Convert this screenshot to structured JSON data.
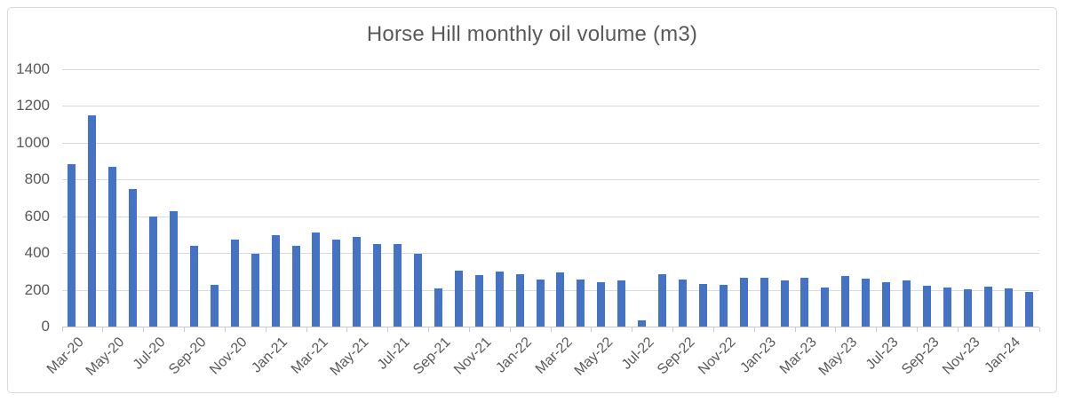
{
  "title": "Horse Hill monthly oil volume (m3)",
  "colors": {
    "bar": "#4472C4",
    "gridline": "#D9D9D9",
    "axis": "#C9C9C9",
    "text": "#595959",
    "border": "#D9D9D9",
    "background": "#FFFFFF"
  },
  "chart_data": {
    "type": "bar",
    "title": "Horse Hill monthly oil volume (m3)",
    "xlabel": "",
    "ylabel": "",
    "ylim": [
      0,
      1400
    ],
    "yticks": [
      0,
      200,
      400,
      600,
      800,
      1000,
      1200,
      1400
    ],
    "grid": true,
    "legend": false,
    "x_label_every": 2,
    "x_label_rotation_deg": -45,
    "categories": [
      "Mar-20",
      "Apr-20",
      "May-20",
      "Jun-20",
      "Jul-20",
      "Aug-20",
      "Sep-20",
      "Oct-20",
      "Nov-20",
      "Dec-20",
      "Jan-21",
      "Feb-21",
      "Mar-21",
      "Apr-21",
      "May-21",
      "Jun-21",
      "Jul-21",
      "Aug-21",
      "Sep-21",
      "Oct-21",
      "Nov-21",
      "Dec-21",
      "Jan-22",
      "Feb-22",
      "Mar-22",
      "Apr-22",
      "May-22",
      "Jun-22",
      "Jul-22",
      "Aug-22",
      "Sep-22",
      "Oct-22",
      "Nov-22",
      "Dec-22",
      "Jan-23",
      "Feb-23",
      "Mar-23",
      "Apr-23",
      "May-23",
      "Jun-23",
      "Jul-23",
      "Aug-23",
      "Sep-23",
      "Oct-23",
      "Nov-23",
      "Dec-23",
      "Jan-24",
      "Feb-24"
    ],
    "values": [
      885,
      1150,
      870,
      748,
      597,
      628,
      440,
      228,
      474,
      395,
      497,
      439,
      513,
      474,
      489,
      448,
      450,
      394,
      209,
      304,
      281,
      297,
      287,
      257,
      293,
      254,
      243,
      251,
      35,
      283,
      257,
      230,
      225,
      266,
      266,
      250,
      266,
      211,
      276,
      261,
      240,
      249,
      221,
      214,
      202,
      216,
      209,
      186
    ]
  }
}
